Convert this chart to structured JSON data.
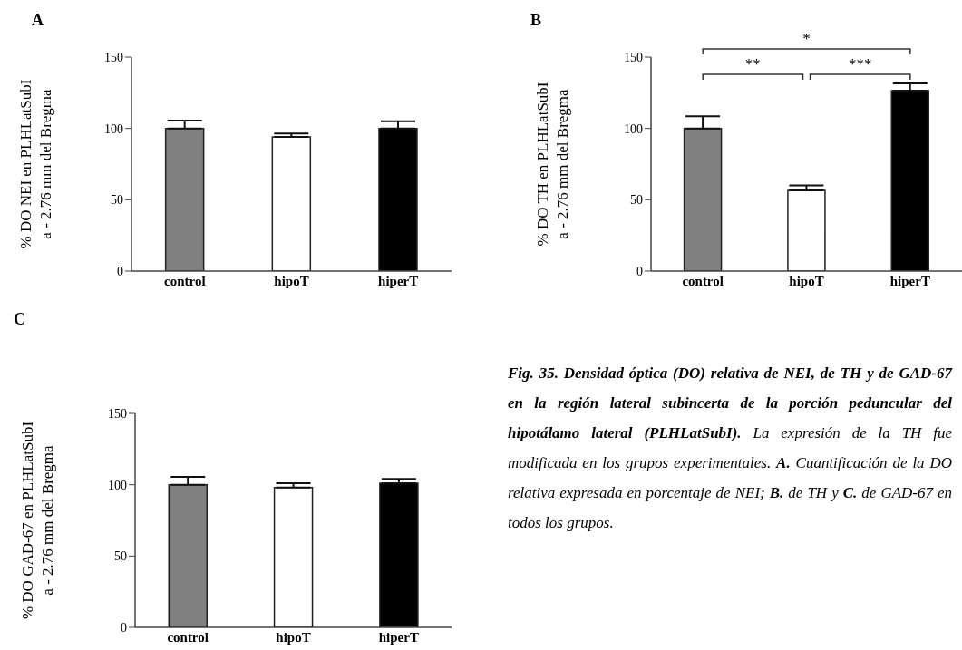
{
  "chart_data": [
    {
      "type": "bar",
      "title": "A",
      "ylabel": "% DO NEI en PLHLatSubI\na - 2.76 mm del Bregma",
      "categories": [
        "control",
        "hipoT",
        "hiperT"
      ],
      "values": [
        100,
        94,
        100
      ],
      "colors": [
        "#808080",
        "#ffffff",
        "#000000"
      ],
      "errors": [
        [
          100,
          105.5
        ],
        [
          94,
          96.5
        ],
        [
          100,
          105
        ]
      ],
      "ylim": [
        0,
        150
      ],
      "yticks": [
        0,
        50,
        100,
        150
      ]
    },
    {
      "type": "bar",
      "title": "B",
      "ylabel": "% DO TH en PLHLatSubI\na - 2.76 mm del Bregma",
      "categories": [
        "control",
        "hipoT",
        "hiperT"
      ],
      "values": [
        100,
        56.5,
        126.5
      ],
      "colors": [
        "#808080",
        "#ffffff",
        "#000000"
      ],
      "errors": [
        [
          100,
          108.5
        ],
        [
          56.5,
          60
        ],
        [
          126.5,
          131.5
        ]
      ],
      "ylim": [
        0,
        150
      ],
      "yticks": [
        0,
        50,
        100,
        150
      ],
      "annotations": [
        "*",
        "**",
        "***"
      ]
    },
    {
      "type": "bar",
      "title": "C",
      "ylabel": "% DO GAD-67 en PLHLatSubI\na - 2.76 mm del Bregma",
      "categories": [
        "control",
        "hipoT",
        "hiperT"
      ],
      "values": [
        100,
        98,
        101
      ],
      "colors": [
        "#808080",
        "#ffffff",
        "#000000"
      ],
      "errors": [
        [
          100,
          105.5
        ],
        [
          98,
          101
        ],
        [
          101,
          104
        ]
      ],
      "ylim": [
        0,
        150
      ],
      "yticks": [
        0,
        50,
        100,
        150
      ]
    },
    {
      "type": "other",
      "annotations": [
        "Fig. 35. Densidad óptica (DO) relativa de NEI, de TH y de GAD-67 en la región lateral subincerta de la porción peduncular del hipotálamo lateral (PLHLatSubI).",
        "La expresión de la TH fue modificada en los grupos experimentales.",
        "A.",
        "Cuantificación de la DO relativa expresada en porcentaje de NEI;",
        "B.",
        "de TH y",
        "C.",
        "de GAD-67 en todos los grupos."
      ]
    }
  ]
}
